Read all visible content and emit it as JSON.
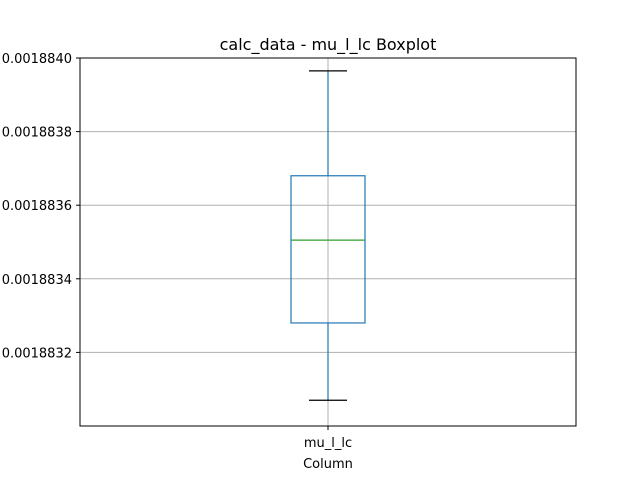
{
  "chart_data": {
    "type": "boxplot",
    "title": "calc_data - mu_l_lc Boxplot",
    "xlabel": "Column",
    "ylabel": "",
    "categories": [
      "mu_l_lc"
    ],
    "boxes": [
      {
        "category": "mu_l_lc",
        "whisker_low": 0.00188307,
        "q1": 0.00188328,
        "median": 0.001883505,
        "q3": 0.00188368,
        "whisker_high": 0.001883965
      }
    ],
    "ylim": [
      0.001883,
      0.001884
    ],
    "yticks": [
      0.0018832,
      0.0018834,
      0.0018836,
      0.0018838,
      0.001884
    ],
    "ytick_labels": [
      "0.0018832",
      "0.0018834",
      "0.0018836",
      "0.0018838",
      "0.0018840"
    ],
    "grid": true,
    "colors": {
      "box": "#1f77b4",
      "median": "#2ca02c",
      "whisker_cap": "#000000",
      "grid": "#b0b0b0",
      "axes": "#000000"
    }
  }
}
